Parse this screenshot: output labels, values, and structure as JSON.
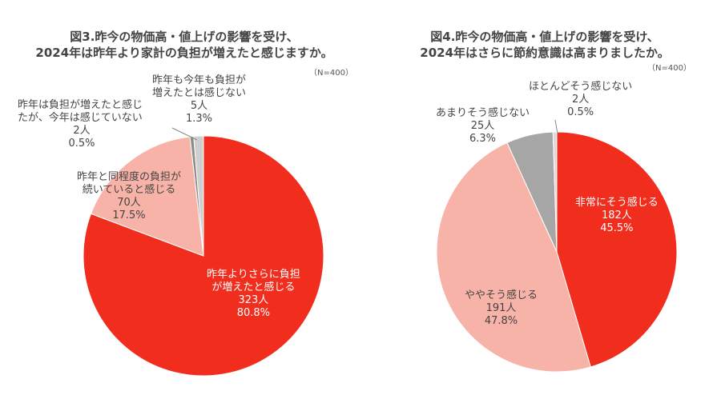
{
  "chart_data": [
    {
      "type": "pie",
      "title_lines": [
        "図3.昨今の物価高・値上げの影響を受け、",
        "2024年は昨年より家計の負担が増えたと感じますか。"
      ],
      "n_label": "（N=400）",
      "slices": [
        {
          "label_lines": [
            "昨年よりさらに負担",
            "が増えたと感じる"
          ],
          "count": "323人",
          "pct_label": "80.8%",
          "value": 80.8,
          "color": "#F12E1E"
        },
        {
          "label_lines": [
            "昨年と同程度の負担が",
            "続いていると感じる"
          ],
          "count": "70人",
          "pct_label": "17.5%",
          "value": 17.5,
          "color": "#F8B3A8"
        },
        {
          "label_lines": [
            "昨年は負担が増えたと感じ",
            "たが、今年は感じていない"
          ],
          "count": "2人",
          "pct_label": "0.5%",
          "value": 0.5,
          "color": "#8C8C8C"
        },
        {
          "label_lines": [
            "昨年も今年も負担が",
            "増えたとは感じない"
          ],
          "count": "5人",
          "pct_label": "1.3%",
          "value": 1.3,
          "color": "#CFCFCF"
        }
      ]
    },
    {
      "type": "pie",
      "title_lines": [
        "図4.昨今の物価高・値上げの影響を受け、",
        "2024年はさらに節約意識は高まりましたか。"
      ],
      "n_label": "（N=400）",
      "slices": [
        {
          "label_lines": [
            "非常にそう感じる"
          ],
          "count": "182人",
          "pct_label": "45.5%",
          "value": 45.5,
          "color": "#F12E1E"
        },
        {
          "label_lines": [
            "ややそう感じる"
          ],
          "count": "191人",
          "pct_label": "47.8%",
          "value": 47.8,
          "color": "#F8B3A8"
        },
        {
          "label_lines": [
            "あまりそう感じない"
          ],
          "count": "25人",
          "pct_label": "6.3%",
          "value": 6.3,
          "color": "#A6A6A6"
        },
        {
          "label_lines": [
            "ほとんどそう感じない"
          ],
          "count": "2人",
          "pct_label": "0.5%",
          "value": 0.5,
          "color": "#D9D9D9"
        }
      ]
    }
  ]
}
